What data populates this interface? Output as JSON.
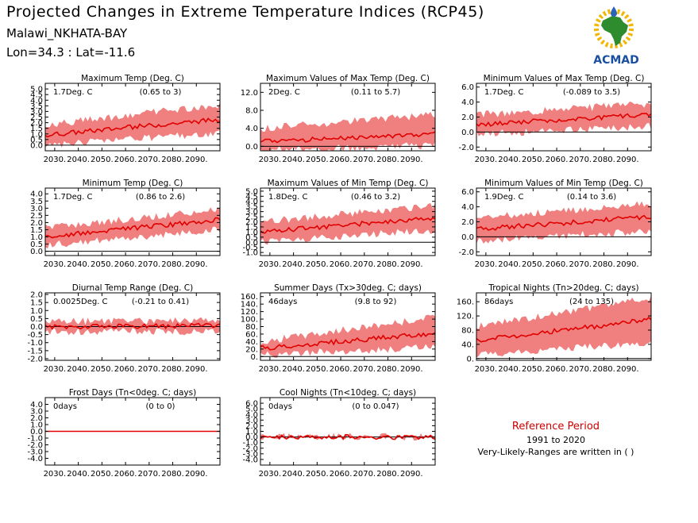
{
  "header": {
    "title": "Projected Changes in Extreme Temperature Indices (RCP45)",
    "location": "Malawi_NKHATA-BAY",
    "coordinates": "Lon=34.3 : Lat=-11.6"
  },
  "logo": {
    "text": "ACMAD",
    "icon": "africa-map-icon"
  },
  "reference": {
    "title": "Reference Period",
    "years": "1991 to 2020",
    "note": "Very-Likely-Ranges are written in ( )"
  },
  "colors": {
    "median_line": "#e00000",
    "range_band": "#f08080",
    "zero_line": "#000000",
    "reference_title": "#cc0000"
  },
  "chart_data": [
    {
      "type": "area",
      "title": "Maximum Temp (Deg. C)",
      "summary": "1.7Deg. C",
      "range_text": "(0.65 to 3)",
      "x_range": [
        2026,
        2100
      ],
      "ylim": [
        -0.5,
        5.5
      ],
      "yticks": [
        0,
        0.5,
        1,
        1.5,
        2,
        2.5,
        3,
        3.5,
        4,
        4.5,
        5
      ],
      "ytick_labels": [
        "0.0",
        "0.5",
        "1.0",
        "1.5",
        "2.0",
        "2.5",
        "3.0",
        "3.5",
        "4.0",
        "4.5",
        "5.0"
      ],
      "x": [
        2026,
        2100
      ],
      "median": [
        0.9,
        2.3
      ],
      "low": [
        0.0,
        1.1
      ],
      "high": [
        1.8,
        3.6
      ]
    },
    {
      "type": "area",
      "title": "Maximum Values of Max Temp (Deg. C)",
      "summary": "2Deg. C",
      "range_text": "(0.11 to 5.7)",
      "x_range": [
        2026,
        2100
      ],
      "ylim": [
        -1.0,
        14.0
      ],
      "yticks": [
        0,
        4,
        8,
        12
      ],
      "ytick_labels": [
        "0.0",
        "4.0",
        "8.0",
        "12.0"
      ],
      "x": [
        2026,
        2100
      ],
      "median": [
        1.0,
        2.8
      ],
      "low": [
        -0.8,
        0.2
      ],
      "high": [
        4.0,
        7.0
      ]
    },
    {
      "type": "area",
      "title": "Minimum Values of Max Temp (Deg. C)",
      "summary": "1.7Deg. C",
      "range_text": "(-0.089 to 3.5)",
      "x_range": [
        2026,
        2100
      ],
      "ylim": [
        -2.5,
        6.5
      ],
      "yticks": [
        -2,
        0,
        2,
        4,
        6
      ],
      "ytick_labels": [
        "-2.0",
        "0.0",
        "2.0",
        "4.0",
        "6.0"
      ],
      "x": [
        2026,
        2100
      ],
      "median": [
        1.0,
        2.3
      ],
      "low": [
        -0.3,
        0.8
      ],
      "high": [
        2.3,
        3.8
      ]
    },
    {
      "type": "area",
      "title": "Minimum Temp (Deg. C)",
      "summary": "1.7Deg. C",
      "range_text": "(0.86 to 2.6)",
      "x_range": [
        2026,
        2100
      ],
      "ylim": [
        -0.3,
        4.4
      ],
      "yticks": [
        0,
        0.5,
        1,
        1.5,
        2,
        2.5,
        3,
        3.5,
        4
      ],
      "ytick_labels": [
        "0.0",
        "0.5",
        "1.0",
        "1.5",
        "2.0",
        "2.5",
        "3.0",
        "3.5",
        "4.0"
      ],
      "x": [
        2026,
        2100
      ],
      "median": [
        1.0,
        2.2
      ],
      "low": [
        0.4,
        1.5
      ],
      "high": [
        1.6,
        2.9
      ]
    },
    {
      "type": "area",
      "title": "Maximum Values of Min Temp (Deg. C)",
      "summary": "1.8Deg. C",
      "range_text": "(0.46 to 3.2)",
      "x_range": [
        2026,
        2100
      ],
      "ylim": [
        -1.3,
        5.3
      ],
      "yticks": [
        -1,
        -0.5,
        0,
        0.5,
        1,
        1.5,
        2,
        2.5,
        3,
        3.5,
        4,
        4.5,
        5
      ],
      "ytick_labels": [
        "-1.0",
        "-0.5",
        "0.0",
        "0.5",
        "1.0",
        "1.5",
        "2.0",
        "2.5",
        "3.0",
        "3.5",
        "4.0",
        "4.5",
        "5.0"
      ],
      "x": [
        2026,
        2100
      ],
      "median": [
        1.0,
        2.4
      ],
      "low": [
        0.0,
        1.2
      ],
      "high": [
        2.0,
        3.6
      ]
    },
    {
      "type": "area",
      "title": "Minimum Values of Min Temp (Deg. C)",
      "summary": "1.9Deg. C",
      "range_text": "(0.14 to 3.6)",
      "x_range": [
        2026,
        2100
      ],
      "ylim": [
        -2.5,
        6.5
      ],
      "yticks": [
        -2,
        0,
        2,
        4,
        6
      ],
      "ytick_labels": [
        "-2.0",
        "0.0",
        "2.0",
        "4.0",
        "6.0"
      ],
      "x": [
        2026,
        2100
      ],
      "median": [
        1.0,
        2.7
      ],
      "low": [
        -0.5,
        0.8
      ],
      "high": [
        2.5,
        4.4
      ]
    },
    {
      "type": "area",
      "title": "Diurnal Temp Range (Deg. C)",
      "summary": "0.0025Deg. C",
      "range_text": "(-0.21 to 0.41)",
      "x_range": [
        2026,
        2100
      ],
      "ylim": [
        -2.1,
        2.1
      ],
      "yticks": [
        -2,
        -1.5,
        -1,
        -0.5,
        0,
        0.5,
        1,
        1.5,
        2
      ],
      "ytick_labels": [
        "-2.0",
        "-1.5",
        "-1.0",
        "-0.5",
        "0.0",
        "0.5",
        "1.0",
        "1.5",
        "2.0"
      ],
      "x": [
        2026,
        2100
      ],
      "median": [
        0.0,
        0.05
      ],
      "low": [
        -0.3,
        -0.3
      ],
      "high": [
        0.3,
        0.4
      ]
    },
    {
      "type": "area",
      "title": "Summer Days (Tx>30deg. C; days)",
      "summary": "46days",
      "range_text": "(9.8 to 92)",
      "x_range": [
        2026,
        2100
      ],
      "ylim": [
        -10,
        170
      ],
      "yticks": [
        0,
        20,
        40,
        60,
        80,
        100,
        120,
        140,
        160
      ],
      "ytick_labels": [
        "0.",
        "20.",
        "40.",
        "60.",
        "80.",
        "100.",
        "120.",
        "140.",
        "160."
      ],
      "x": [
        2026,
        2100
      ],
      "median": [
        22,
        62
      ],
      "low": [
        5,
        25
      ],
      "high": [
        40,
        105
      ]
    },
    {
      "type": "area",
      "title": "Tropical Nights (Tn>20deg. C; days)",
      "summary": "86days",
      "range_text": "(24 to 135)",
      "x_range": [
        2026,
        2100
      ],
      "ylim": [
        -5,
        185
      ],
      "yticks": [
        0,
        40,
        80,
        120,
        160
      ],
      "ytick_labels": [
        "0.",
        "40.",
        "80.",
        "120.",
        "160."
      ],
      "x": [
        2026,
        2100
      ],
      "median": [
        50,
        110
      ],
      "low": [
        10,
        45
      ],
      "high": [
        90,
        170
      ]
    },
    {
      "type": "area",
      "title": "Frost Days (Tn<0deg. C; days)",
      "summary": "0days",
      "range_text": "(0 to 0)",
      "x_range": [
        2026,
        2100
      ],
      "ylim": [
        -5.0,
        5.0
      ],
      "yticks": [
        -4,
        -3,
        -2,
        -1,
        0,
        1,
        2,
        3,
        4
      ],
      "ytick_labels": [
        "-4.0",
        "-3.0",
        "-2.0",
        "-1.0",
        "0.0",
        "1.0",
        "2.0",
        "3.0",
        "4.0"
      ],
      "x": [
        2026,
        2100
      ],
      "median": [
        0,
        0
      ],
      "low": [
        0,
        0
      ],
      "high": [
        0,
        0
      ]
    },
    {
      "type": "area",
      "title": "Cool Nights (Tn<10deg. C; days)",
      "summary": "0days",
      "range_text": "(0 to 0.047)",
      "x_range": [
        2026,
        2100
      ],
      "ylim": [
        -5.0,
        7.0
      ],
      "yticks": [
        -4,
        -3,
        -2,
        -1,
        0,
        1,
        2,
        3,
        4,
        5,
        6
      ],
      "ytick_labels": [
        "-4.0",
        "-3.0",
        "-2.0",
        "-1.0",
        "0.0",
        "1.0",
        "2.0",
        "3.0",
        "4.0",
        "5.0",
        "6.0"
      ],
      "x": [
        2026,
        2100
      ],
      "median": [
        0,
        0
      ],
      "low": [
        0,
        0
      ],
      "high": [
        0,
        0.05
      ]
    }
  ],
  "xticks": [
    2030,
    2040,
    2050,
    2060,
    2070,
    2080,
    2090
  ],
  "xtick_labels": [
    "2030.",
    "2040.",
    "2050.",
    "2060.",
    "2070.",
    "2080.",
    "2090."
  ]
}
